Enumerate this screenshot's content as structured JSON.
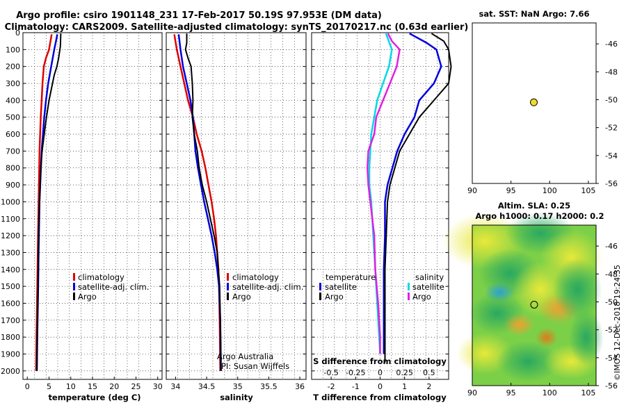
{
  "header": {
    "line1": "Argo profile: csiro 1901148_231 17-Feb-2017 50.19S 97.953E (DM data)",
    "line2": "Climatology: CARS2009. Satellite-adjusted climatology: synTS_20170217.nc (0.63d earlier)"
  },
  "colors": {
    "climatology": "#e00000",
    "satellite": "#0000dd",
    "argo": "#000000",
    "sal_diff": "#e020e0",
    "temp_sat_diff": "#00d8e8",
    "marker": "#f0dc28"
  },
  "chart_data": [
    {
      "id": "temperature",
      "type": "line",
      "xlabel": "temperature (deg C)",
      "ylabel": "",
      "xlim": [
        -1,
        31
      ],
      "ylim": [
        2050,
        0
      ],
      "xticks": [
        0,
        5,
        10,
        15,
        20,
        25,
        30
      ],
      "xticklabels": [
        "0",
        "5",
        "10",
        "15",
        "20",
        "25",
        "30"
      ],
      "yticks": [
        0,
        100,
        200,
        300,
        400,
        500,
        600,
        700,
        800,
        900,
        1000,
        1100,
        1200,
        1300,
        1400,
        1500,
        1600,
        1700,
        1800,
        1900,
        2000
      ],
      "yticklabels": [
        "0",
        "100",
        "200",
        "300",
        "400",
        "500",
        "600",
        "700",
        "800",
        "900",
        "1000",
        "1100",
        "1200",
        "1300",
        "1400",
        "1500",
        "1600",
        "1700",
        "1800",
        "1900",
        "2000"
      ],
      "legend": [
        "climatology",
        "satellite-adj. clim.",
        "Argo"
      ],
      "series": [
        {
          "name": "climatology",
          "depth": [
            10,
            100,
            150,
            200,
            300,
            400,
            500,
            700,
            1000,
            1300,
            1500,
            1800,
            2000
          ],
          "values": [
            5.6,
            5.0,
            4.3,
            3.8,
            3.5,
            3.3,
            3.1,
            2.8,
            2.6,
            2.4,
            2.3,
            2.1,
            2.0
          ]
        },
        {
          "name": "satellite-adj. clim.",
          "depth": [
            10,
            50,
            100,
            200,
            300,
            400,
            500,
            700,
            1000,
            1300,
            1500,
            1800,
            2000
          ],
          "values": [
            6.9,
            6.6,
            6.2,
            5.5,
            4.8,
            4.3,
            3.9,
            3.3,
            2.8,
            2.6,
            2.5,
            2.3,
            2.2
          ]
        },
        {
          "name": "Argo",
          "depth": [
            5,
            80,
            150,
            200,
            250,
            300,
            350,
            400,
            500,
            600,
            700,
            800,
            1000,
            1200,
            1500,
            1800,
            2000
          ],
          "values": [
            7.7,
            7.6,
            7.2,
            6.8,
            6.2,
            5.8,
            5.4,
            5.0,
            4.4,
            3.9,
            3.4,
            3.1,
            2.8,
            2.6,
            2.45,
            2.3,
            2.2
          ]
        }
      ]
    },
    {
      "id": "salinity",
      "type": "line",
      "xlabel": "salinity",
      "ylabel": "",
      "xlim": [
        33.85,
        36.1
      ],
      "ylim": [
        2050,
        0
      ],
      "xticks": [
        34,
        34.5,
        35,
        35.5,
        36
      ],
      "xticklabels": [
        "34",
        "34.5",
        "35",
        "35.5",
        "36"
      ],
      "legend": [
        "climatology",
        "satellite-adj. clim.",
        "Argo"
      ],
      "series": [
        {
          "name": "climatology",
          "depth": [
            10,
            100,
            200,
            300,
            400,
            500,
            600,
            700,
            800,
            900,
            1000,
            1100,
            1200,
            1300,
            1400,
            1500,
            1700,
            2000
          ],
          "values": [
            33.98,
            34.02,
            34.08,
            34.14,
            34.2,
            34.28,
            34.34,
            34.42,
            34.48,
            34.53,
            34.58,
            34.62,
            34.65,
            34.67,
            34.69,
            34.7,
            34.71,
            34.72
          ]
        },
        {
          "name": "satellite-adj. clim.",
          "depth": [
            10,
            100,
            200,
            300,
            400,
            500,
            600,
            700,
            800,
            900,
            1000,
            1100,
            1200,
            1300,
            1400,
            1500,
            1700,
            2000
          ],
          "values": [
            34.05,
            34.08,
            34.12,
            34.18,
            34.24,
            34.28,
            34.3,
            34.32,
            34.36,
            34.41,
            34.46,
            34.52,
            34.58,
            34.63,
            34.67,
            34.7,
            34.72,
            34.73
          ]
        },
        {
          "name": "Argo",
          "depth": [
            5,
            60,
            100,
            150,
            200,
            300,
            400,
            500,
            600,
            700,
            800,
            900,
            1000,
            1100,
            1200,
            1300,
            1400,
            1500,
            1700,
            1900,
            2000
          ],
          "values": [
            34.18,
            34.18,
            34.16,
            34.2,
            34.25,
            34.27,
            34.28,
            34.27,
            34.3,
            34.35,
            34.38,
            34.43,
            34.5,
            34.56,
            34.62,
            34.67,
            34.69,
            34.71,
            34.72,
            34.73,
            34.73
          ]
        }
      ],
      "annotation": [
        "Argo Australia",
        "PI: Susan Wijffels"
      ]
    },
    {
      "id": "difference",
      "type": "line",
      "xlabel": "T difference from climatology",
      "xlabel2": "S difference from climatology",
      "xlim": [
        -2.8,
        2.8
      ],
      "ylim": [
        2050,
        0
      ],
      "xticks": [
        -2,
        -1,
        0,
        1,
        2
      ],
      "xticklabels": [
        "-2",
        "-1",
        "0",
        "1",
        "2"
      ],
      "xticks2": [
        -0.5,
        -0.25,
        0,
        0.25,
        0.5
      ],
      "xticklabels2": [
        "-0.5",
        "-0.25",
        "0",
        "0.25",
        "0.5"
      ],
      "legend_temperature": {
        "title": "temperature",
        "items": [
          "satellite",
          "Argo"
        ]
      },
      "legend_salinity": {
        "title": "salinity",
        "items": [
          "satellite",
          "Argo"
        ]
      },
      "series": [
        {
          "name": "temperature satellite",
          "depth": [
            5,
            60,
            100,
            200,
            300,
            400,
            500,
            600,
            700,
            800,
            900,
            1000,
            1200,
            1400,
            1600,
            1800,
            1900
          ],
          "values": [
            1.2,
            1.9,
            2.3,
            2.5,
            2.2,
            1.6,
            1.4,
            1.0,
            0.7,
            0.5,
            0.3,
            0.2,
            0.2,
            0.15,
            0.15,
            0.15,
            0.15
          ]
        },
        {
          "name": "temperature Argo",
          "depth": [
            5,
            50,
            100,
            200,
            300,
            400,
            500,
            600,
            700,
            800,
            900,
            1000,
            1200,
            1400,
            1600,
            1800,
            1950
          ],
          "values": [
            2.1,
            2.6,
            2.8,
            2.9,
            2.8,
            2.2,
            1.6,
            1.2,
            0.8,
            0.6,
            0.4,
            0.3,
            0.25,
            0.2,
            0.2,
            0.2,
            0.2
          ]
        },
        {
          "name": "salinity satellite",
          "depth": [
            5,
            100,
            200,
            300,
            400,
            500,
            600,
            700,
            800,
            900,
            1000,
            1200,
            1400,
            1600,
            1800,
            1900
          ],
          "values": [
            0.06,
            0.12,
            0.09,
            0.03,
            -0.03,
            -0.06,
            -0.09,
            -0.1,
            -0.11,
            -0.11,
            -0.09,
            -0.07,
            -0.05,
            -0.03,
            -0.01,
            0.0
          ]
        },
        {
          "name": "salinity Argo",
          "depth": [
            5,
            50,
            100,
            200,
            300,
            400,
            500,
            600,
            700,
            800,
            900,
            1000,
            1200,
            1400,
            1600,
            1800,
            1900
          ],
          "values": [
            0.08,
            0.12,
            0.2,
            0.17,
            0.1,
            0.03,
            -0.04,
            -0.06,
            -0.12,
            -0.13,
            -0.12,
            -0.1,
            -0.06,
            -0.05,
            -0.02,
            0.0,
            0.0
          ]
        }
      ]
    },
    {
      "id": "sst_map",
      "type": "scatter",
      "title": "sat. SST: NaN Argo: 7.66",
      "xlim": [
        90,
        106
      ],
      "ylim": [
        -56,
        -44.5
      ],
      "xticks": [
        90,
        95,
        100,
        105
      ],
      "xticklabels": [
        "90",
        "95",
        "100",
        "105"
      ],
      "yticks": [
        -46,
        -48,
        -50,
        -52,
        -54,
        -56
      ],
      "yticklabels": [
        "-46",
        "-48",
        "-50",
        "-52",
        "-54",
        "-56"
      ],
      "point": {
        "lon": 97.953,
        "lat": -50.19
      }
    },
    {
      "id": "sla_map",
      "type": "heatmap",
      "title": "Altim. SLA: 0.25",
      "subtitle": "Argo h1000: 0.17 h2000: 0.2",
      "xlim": [
        90,
        106
      ],
      "ylim": [
        -56,
        -44.5
      ],
      "xticks": [
        90,
        95,
        100,
        105
      ],
      "xticklabels": [
        "90",
        "95",
        "100",
        "105"
      ],
      "yticks": [
        -46,
        -48,
        -50,
        -52,
        -54,
        -56
      ],
      "yticklabels": [
        "-46",
        "-48",
        "-50",
        "-52",
        "-54",
        "-56"
      ],
      "point": {
        "lon": 98.0,
        "lat": -50.2
      }
    }
  ],
  "footer": {
    "stamp": "©IMOS 12-Dec-2018 19:24:35"
  }
}
